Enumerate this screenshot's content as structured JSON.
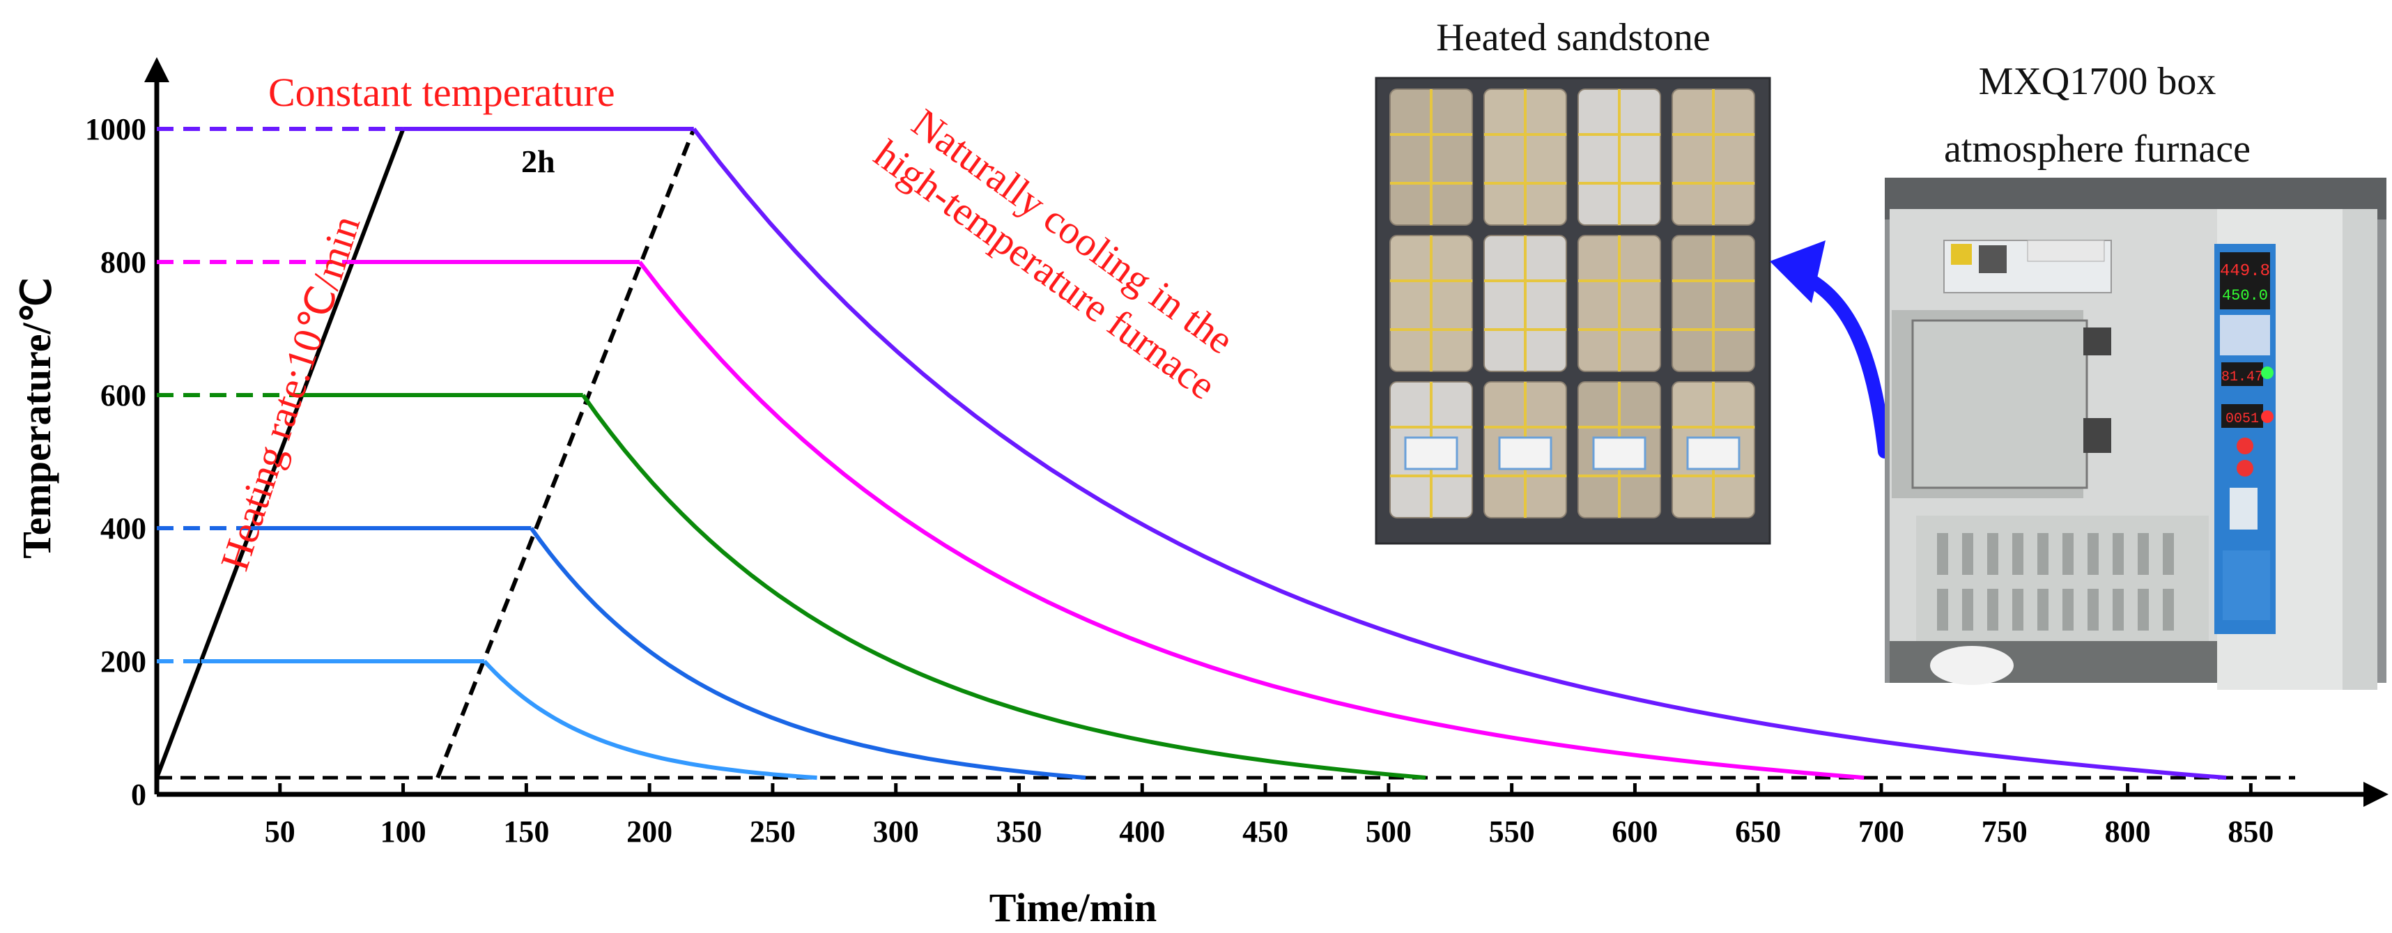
{
  "chart_data": {
    "type": "line",
    "xlabel": "Time/min",
    "ylabel": "Temperature/℃",
    "xlim": [
      0,
      880
    ],
    "ylim": [
      0,
      1060
    ],
    "xticks": [
      50,
      100,
      150,
      200,
      250,
      300,
      350,
      400,
      450,
      500,
      550,
      600,
      650,
      700,
      750,
      800,
      850
    ],
    "yticks": [
      0,
      200,
      400,
      600,
      800,
      1000
    ],
    "ambient_temperature": 25,
    "grid": false,
    "series": [
      {
        "target": 200,
        "color": "#3399ff",
        "heat_end": 18,
        "hold_end": 133,
        "cool_end": 268
      },
      {
        "target": 400,
        "color": "#1a66e6",
        "heat_end": 38,
        "hold_end": 152,
        "cool_end": 377
      },
      {
        "target": 600,
        "color": "#0a8a0a",
        "heat_end": 58,
        "hold_end": 173,
        "cool_end": 515
      },
      {
        "target": 800,
        "color": "#ff00ff",
        "heat_end": 78,
        "hold_end": 196,
        "cool_end": 693
      },
      {
        "target": 1000,
        "color": "#6a1aff",
        "heat_end": 100,
        "hold_end": 218,
        "cool_end": 840
      }
    ],
    "heating_line": {
      "from": [
        0,
        25
      ],
      "to": [
        100,
        1000
      ],
      "color": "#000000"
    },
    "hold_end_line": {
      "from": [
        114,
        25
      ],
      "to": [
        218,
        1000
      ],
      "color": "#000000"
    },
    "annotations": {
      "constant": "Constant temperature",
      "hold": "2h",
      "heating_rate": "Heating rate:10℃/min",
      "cooling_line1": "Naturally cooling in the",
      "cooling_line2": "high-temperature furnace"
    }
  },
  "photos": {
    "sandstone_label": "Heated sandstone",
    "furnace_label_line1": "MXQ1700 box",
    "furnace_label_line2": "atmosphere furnace",
    "furnace_display_1": "449.8",
    "furnace_display_2": "450.0",
    "furnace_display_3": "81.47",
    "furnace_display_4": "0051"
  },
  "colors": {
    "annotation_red": "#ff1a1a",
    "arrow_blue": "#1a1aff"
  }
}
